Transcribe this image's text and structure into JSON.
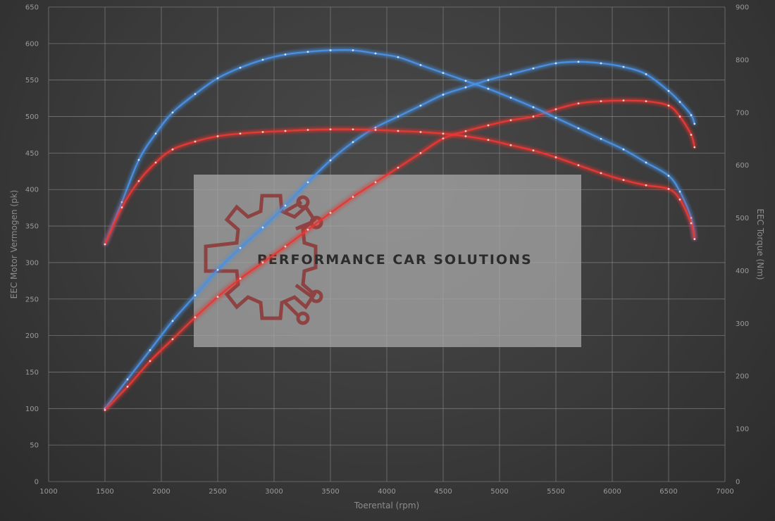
{
  "chart_data": {
    "type": "line",
    "xlabel": "Toerental (rpm)",
    "ylabel": "EEC Motor Vermogen (pk)",
    "y2label": "EEC Torque (Nm)",
    "xlim": [
      1000,
      7000
    ],
    "ylim": [
      0,
      650
    ],
    "y2lim": [
      0,
      900
    ],
    "x_ticks": [
      1000,
      1500,
      2000,
      2500,
      3000,
      3500,
      4000,
      4500,
      5000,
      5500,
      6000,
      6500,
      7000
    ],
    "y_ticks": [
      0,
      50,
      100,
      150,
      200,
      250,
      300,
      350,
      400,
      450,
      500,
      550,
      600,
      650
    ],
    "y2_ticks": [
      0,
      100,
      200,
      300,
      400,
      500,
      600,
      700,
      800,
      900
    ],
    "grid": true,
    "watermark_text": "PERFORMANCE CAR SOLUTIONS",
    "series": [
      {
        "axis": "left",
        "color": "#4a90e2",
        "x": [
          1500,
          1700,
          1900,
          2100,
          2300,
          2500,
          2700,
          2900,
          3100,
          3300,
          3500,
          3700,
          3900,
          4100,
          4300,
          4500,
          4700,
          4900,
          5100,
          5300,
          5500,
          5700,
          5900,
          6100,
          6300,
          6500,
          6600,
          6700,
          6730
        ],
        "y": [
          100,
          140,
          180,
          220,
          255,
          290,
          320,
          348,
          378,
          410,
          440,
          465,
          485,
          500,
          515,
          530,
          540,
          550,
          558,
          566,
          573,
          575,
          573,
          568,
          558,
          535,
          520,
          502,
          490
        ]
      },
      {
        "axis": "left",
        "color": "#e53935",
        "x": [
          1500,
          1700,
          1900,
          2100,
          2300,
          2500,
          2700,
          2900,
          3100,
          3300,
          3500,
          3700,
          3900,
          4100,
          4300,
          4500,
          4700,
          4900,
          5100,
          5300,
          5500,
          5700,
          5900,
          6100,
          6300,
          6500,
          6600,
          6700,
          6730
        ],
        "y": [
          98,
          130,
          165,
          195,
          225,
          253,
          278,
          300,
          322,
          345,
          368,
          390,
          410,
          430,
          450,
          470,
          480,
          488,
          495,
          500,
          510,
          518,
          521,
          522,
          521,
          515,
          500,
          475,
          458
        ]
      },
      {
        "axis": "right",
        "color": "#4a90e2",
        "x": [
          1500,
          1650,
          1800,
          1950,
          2100,
          2300,
          2500,
          2700,
          2900,
          3100,
          3300,
          3500,
          3700,
          3900,
          4100,
          4300,
          4500,
          4700,
          4900,
          5100,
          5300,
          5500,
          5700,
          5900,
          6100,
          6300,
          6500,
          6600,
          6700,
          6730
        ],
        "y": [
          450,
          530,
          610,
          660,
          700,
          735,
          765,
          785,
          800,
          810,
          815,
          818,
          818,
          812,
          805,
          790,
          775,
          760,
          745,
          728,
          710,
          690,
          670,
          650,
          630,
          605,
          580,
          550,
          500,
          460
        ]
      },
      {
        "axis": "right",
        "color": "#e53935",
        "x": [
          1500,
          1650,
          1800,
          1950,
          2100,
          2300,
          2500,
          2700,
          2900,
          3100,
          3300,
          3500,
          3700,
          3900,
          4100,
          4300,
          4500,
          4700,
          4900,
          5100,
          5300,
          5500,
          5700,
          5900,
          6100,
          6300,
          6500,
          6600,
          6700,
          6730
        ],
        "y": [
          450,
          520,
          570,
          605,
          630,
          645,
          655,
          660,
          663,
          665,
          667,
          668,
          668,
          667,
          665,
          663,
          660,
          655,
          648,
          638,
          628,
          615,
          600,
          585,
          572,
          562,
          555,
          535,
          490,
          460
        ]
      }
    ]
  }
}
